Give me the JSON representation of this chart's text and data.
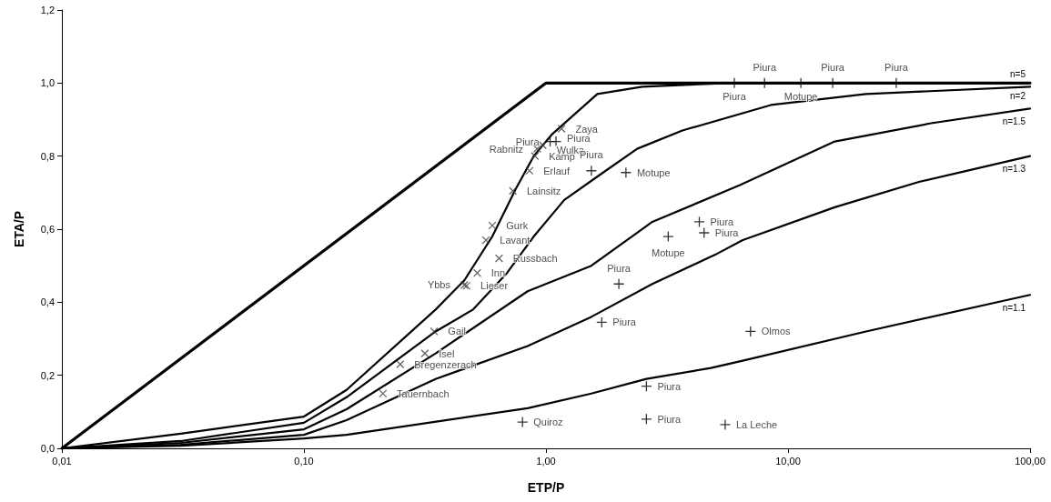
{
  "chart_data": {
    "type": "line",
    "xlabel": "ETP/P",
    "ylabel": "ETA/P",
    "xlim": [
      0.01,
      100
    ],
    "xticks": [
      {
        "value": 0.01,
        "label": "0,01"
      },
      {
        "value": 0.1,
        "label": "0,10"
      },
      {
        "value": 1,
        "label": "1,00"
      },
      {
        "value": 10,
        "label": "10,00"
      },
      {
        "value": 100,
        "label": "100,00"
      }
    ],
    "ylim": [
      0,
      1.2
    ],
    "yticks": [
      {
        "value": 0,
        "label": "0,0"
      },
      {
        "value": 0.2,
        "label": "0,2"
      },
      {
        "value": 0.4,
        "label": "0,4"
      },
      {
        "value": 0.6,
        "label": "0,6"
      },
      {
        "value": 0.8,
        "label": "0,8"
      },
      {
        "value": 1,
        "label": "1,0"
      },
      {
        "value": 1.2,
        "label": "1,2"
      }
    ],
    "log": "x",
    "grid": false,
    "legend": false,
    "line_style": "solid",
    "marker": "none",
    "series": [
      {
        "color": "#000000",
        "x": [
          0.01,
          1,
          100
        ],
        "values": [
          0,
          1,
          1
        ]
      },
      {
        "name": "n=5",
        "color": "#000000",
        "x": [
          0.01,
          0.031,
          0.1,
          0.15,
          0.35,
          0.46,
          0.6,
          0.75,
          0.89,
          1.06,
          1.63,
          2.5,
          5.6,
          100
        ],
        "values": [
          0,
          0.04,
          0.087,
          0.16,
          0.38,
          0.46,
          0.58,
          0.71,
          0.8,
          0.86,
          0.97,
          0.99,
          1,
          1
        ]
      },
      {
        "name": "n=2",
        "color": "#000000",
        "x": [
          0.01,
          0.031,
          0.1,
          0.15,
          0.35,
          0.5,
          0.69,
          0.89,
          1.19,
          1.68,
          2.38,
          3.66,
          8.5,
          21,
          100
        ],
        "values": [
          0,
          0.02,
          0.07,
          0.14,
          0.32,
          0.38,
          0.48,
          0.58,
          0.68,
          0.75,
          0.82,
          0.87,
          0.94,
          0.97,
          0.99
        ]
      },
      {
        "name": "n=1.5",
        "color": "#000000",
        "x": [
          0.01,
          0.031,
          0.1,
          0.15,
          0.35,
          0.84,
          1.54,
          2.75,
          6.3,
          15.6,
          39,
          100
        ],
        "values": [
          0,
          0.015,
          0.052,
          0.107,
          0.26,
          0.43,
          0.5,
          0.62,
          0.72,
          0.84,
          0.89,
          0.93
        ]
      },
      {
        "name": "n=1.3",
        "color": "#000000",
        "x": [
          0.01,
          0.031,
          0.1,
          0.15,
          0.35,
          0.84,
          1.54,
          2.75,
          5,
          6.5,
          15.6,
          35,
          100
        ],
        "values": [
          0,
          0.01,
          0.037,
          0.077,
          0.19,
          0.28,
          0.36,
          0.45,
          0.53,
          0.57,
          0.66,
          0.73,
          0.8
        ]
      },
      {
        "name": "n=1.1",
        "color": "#000000",
        "x": [
          0.01,
          0.031,
          0.1,
          0.15,
          0.84,
          1.54,
          2.6,
          4.8,
          6.5,
          21,
          100
        ],
        "values": [
          0,
          0.007,
          0.027,
          0.037,
          0.11,
          0.15,
          0.19,
          0.22,
          0.24,
          0.32,
          0.42
        ]
      },
      {
        "type": "scatter",
        "marker": "cross",
        "color": "#404040",
        "x": [
          1.16,
          0.92,
          0.97,
          0.9,
          0.855,
          0.73,
          0.6,
          0.565,
          0.64,
          0.52,
          0.46,
          0.47,
          0.345,
          0.316,
          0.25,
          0.212
        ],
        "values": [
          0.875,
          0.82,
          0.83,
          0.8,
          0.76,
          0.705,
          0.61,
          0.57,
          0.52,
          0.48,
          0.447,
          0.445,
          0.32,
          0.26,
          0.23,
          0.15
        ],
        "value_labels": [
          "Zaya",
          "Rabnitz",
          "Wulka",
          "Kamp",
          "Erlauf",
          "Lainsitz",
          "Gurk",
          "Lavant",
          "Russbach",
          "Inn",
          "Ybbs",
          "Lieser",
          "Gail",
          "Isel",
          "Bregenzerach",
          "Tauernbach"
        ]
      },
      {
        "type": "scatter",
        "marker": "cross",
        "color": "#000000",
        "x": [
          1.04,
          1.1,
          1.54,
          2.14,
          4.3,
          4.5,
          3.2,
          2.0,
          1.7,
          7.0,
          2.6,
          2.6,
          5.5,
          0.8,
          6.0,
          8.0,
          11.3,
          15.3,
          28
        ],
        "values": [
          0.84,
          0.84,
          0.76,
          0.755,
          0.62,
          0.59,
          0.58,
          0.45,
          0.345,
          0.32,
          0.17,
          0.08,
          0.065,
          0.072,
          1,
          1,
          1,
          1,
          1
        ],
        "value_labels": [
          "Piura",
          "Piura",
          "Piura",
          "Motupe",
          "Piura",
          "Piura",
          "Motupe",
          "Piura",
          "Piura",
          "Olmos",
          "Piura",
          "Piura",
          "La Leche",
          "Quiroz",
          "Piura",
          "Piura",
          "Motupe",
          "Piura",
          "Piura"
        ]
      }
    ]
  }
}
